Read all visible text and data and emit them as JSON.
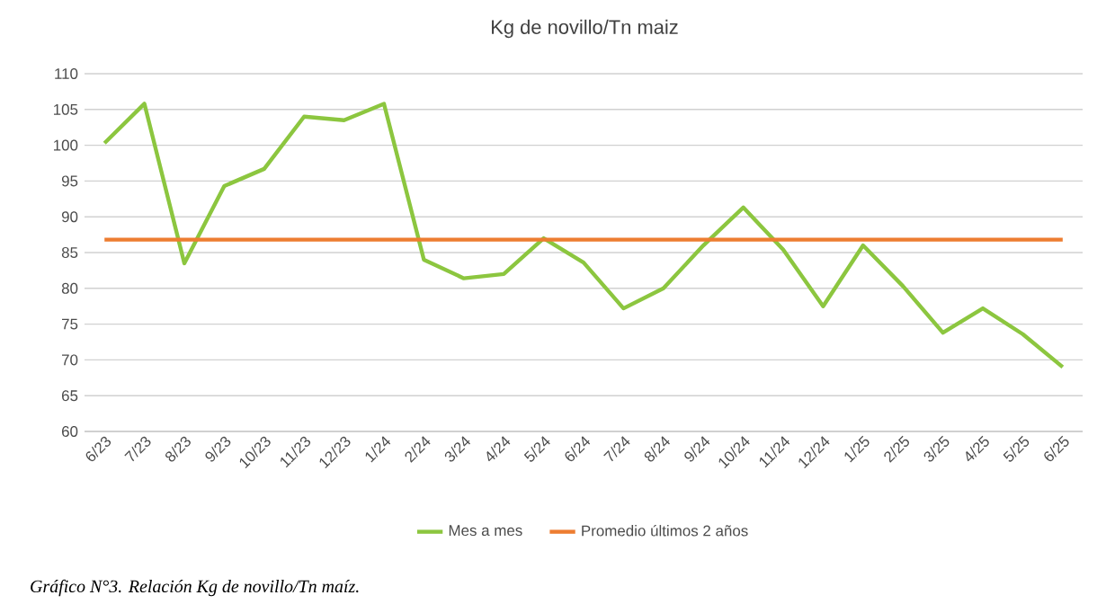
{
  "chart_data": {
    "type": "line",
    "title": "Kg de novillo/Tn maiz",
    "categories": [
      "6/23",
      "7/23",
      "8/23",
      "9/23",
      "10/23",
      "11/23",
      "12/23",
      "1/24",
      "2/24",
      "3/24",
      "4/24",
      "5/24",
      "6/24",
      "7/24",
      "8/24",
      "9/24",
      "10/24",
      "11/24",
      "12/24",
      "1/25",
      "2/25",
      "3/25",
      "4/25",
      "5/25",
      "6/25"
    ],
    "series": [
      {
        "name": "Mes a mes",
        "color": "#8cc63f",
        "values": [
          100.3,
          105.8,
          83.5,
          94.3,
          96.7,
          104,
          103.5,
          105.8,
          84,
          81.4,
          82,
          87,
          83.6,
          77.2,
          80,
          86,
          91.3,
          85.4,
          77.5,
          86,
          80.3,
          73.8,
          77.2,
          73.6,
          69
        ]
      },
      {
        "name": "Promedio últimos 2 años",
        "color": "#ed7d31",
        "values": [
          86.8,
          86.8,
          86.8,
          86.8,
          86.8,
          86.8,
          86.8,
          86.8,
          86.8,
          86.8,
          86.8,
          86.8,
          86.8,
          86.8,
          86.8,
          86.8,
          86.8,
          86.8,
          86.8,
          86.8,
          86.8,
          86.8,
          86.8,
          86.8,
          86.8
        ]
      }
    ],
    "ylim": [
      60,
      110
    ],
    "yticks": [
      60,
      65,
      70,
      75,
      80,
      85,
      90,
      95,
      100,
      105,
      110
    ],
    "grid": "y",
    "legend": "bottom",
    "annotations": [
      "Gráfico N°3. Relación Kg de novillo/Tn maíz."
    ]
  }
}
